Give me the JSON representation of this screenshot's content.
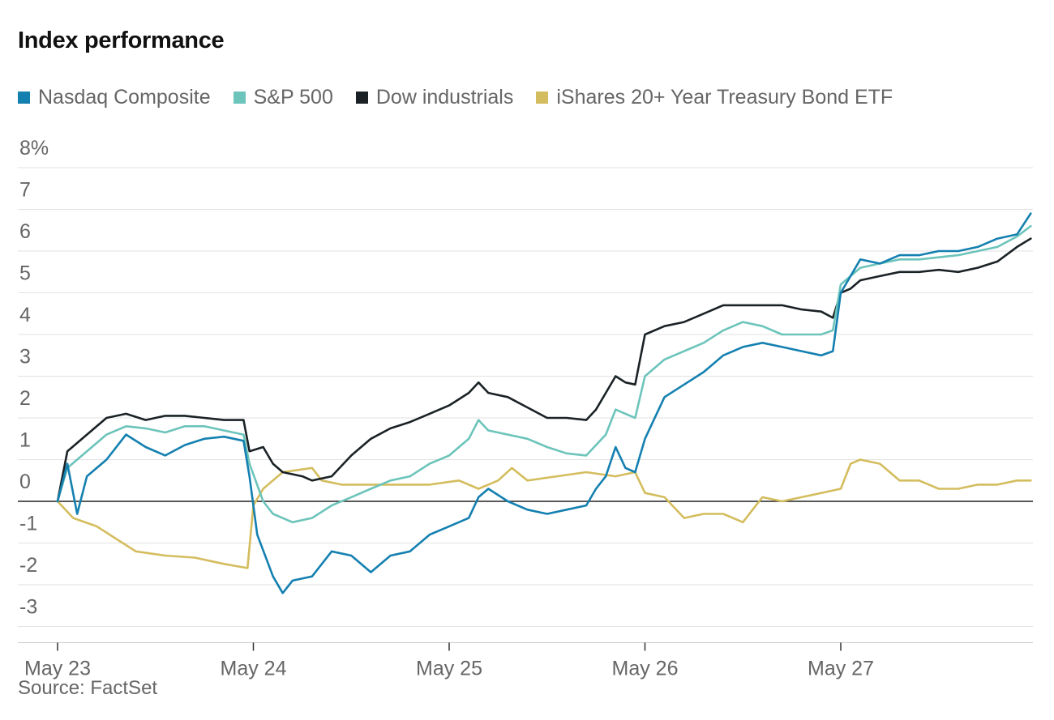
{
  "chart_data": {
    "type": "line",
    "title": "Index performance",
    "source": "Source: FactSet",
    "xlabel": "",
    "ylabel": "",
    "x_tick_labels": [
      "May 23",
      "May 24",
      "May 25",
      "May 26",
      "May 27"
    ],
    "x_range": [
      0,
      4.97
    ],
    "y_tick_labels": [
      "8%",
      "7",
      "6",
      "5",
      "4",
      "3",
      "2",
      "1",
      "0",
      "-1",
      "-2",
      "-3"
    ],
    "y_ticks": [
      8,
      7,
      6,
      5,
      4,
      3,
      2,
      1,
      0,
      -1,
      -2,
      -3
    ],
    "ylim": [
      -3,
      8
    ],
    "grid": true,
    "legend_position": "top",
    "series": [
      {
        "name": "iShares 20+ Year Treasury Bond ETF",
        "color": "#d4bd5e",
        "points": [
          [
            0,
            0
          ],
          [
            0.08,
            -0.4
          ],
          [
            0.2,
            -0.6
          ],
          [
            0.3,
            -0.9
          ],
          [
            0.4,
            -1.2
          ],
          [
            0.55,
            -1.3
          ],
          [
            0.7,
            -1.35
          ],
          [
            0.85,
            -1.5
          ],
          [
            0.97,
            -1.6
          ],
          [
            1.0,
            -0.1
          ],
          [
            1.05,
            0.3
          ],
          [
            1.15,
            0.7
          ],
          [
            1.3,
            0.8
          ],
          [
            1.35,
            0.5
          ],
          [
            1.45,
            0.4
          ],
          [
            1.6,
            0.4
          ],
          [
            1.75,
            0.4
          ],
          [
            1.9,
            0.4
          ],
          [
            2.05,
            0.5
          ],
          [
            2.15,
            0.3
          ],
          [
            2.25,
            0.5
          ],
          [
            2.32,
            0.8
          ],
          [
            2.4,
            0.5
          ],
          [
            2.55,
            0.6
          ],
          [
            2.7,
            0.7
          ],
          [
            2.85,
            0.6
          ],
          [
            2.95,
            0.7
          ],
          [
            3.0,
            0.2
          ],
          [
            3.1,
            0.1
          ],
          [
            3.2,
            -0.4
          ],
          [
            3.3,
            -0.3
          ],
          [
            3.4,
            -0.3
          ],
          [
            3.5,
            -0.5
          ],
          [
            3.55,
            -0.2
          ],
          [
            3.6,
            0.1
          ],
          [
            3.7,
            0.0
          ],
          [
            3.8,
            0.1
          ],
          [
            3.9,
            0.2
          ],
          [
            4.0,
            0.3
          ],
          [
            4.05,
            0.9
          ],
          [
            4.1,
            1.0
          ],
          [
            4.2,
            0.9
          ],
          [
            4.3,
            0.5
          ],
          [
            4.4,
            0.5
          ],
          [
            4.5,
            0.3
          ],
          [
            4.6,
            0.3
          ],
          [
            4.7,
            0.4
          ],
          [
            4.8,
            0.4
          ],
          [
            4.9,
            0.5
          ],
          [
            4.97,
            0.5
          ]
        ]
      },
      {
        "name": "Dow industrials",
        "color": "#1a2226",
        "points": [
          [
            0,
            0
          ],
          [
            0.05,
            1.2
          ],
          [
            0.15,
            1.6
          ],
          [
            0.25,
            2.0
          ],
          [
            0.35,
            2.1
          ],
          [
            0.45,
            1.95
          ],
          [
            0.55,
            2.05
          ],
          [
            0.65,
            2.05
          ],
          [
            0.75,
            2.0
          ],
          [
            0.85,
            1.95
          ],
          [
            0.95,
            1.95
          ],
          [
            0.98,
            1.2
          ],
          [
            1.05,
            1.3
          ],
          [
            1.1,
            0.9
          ],
          [
            1.15,
            0.7
          ],
          [
            1.25,
            0.6
          ],
          [
            1.3,
            0.5
          ],
          [
            1.4,
            0.6
          ],
          [
            1.5,
            1.1
          ],
          [
            1.6,
            1.5
          ],
          [
            1.7,
            1.75
          ],
          [
            1.8,
            1.9
          ],
          [
            1.9,
            2.1
          ],
          [
            2.0,
            2.3
          ],
          [
            2.1,
            2.6
          ],
          [
            2.15,
            2.85
          ],
          [
            2.2,
            2.6
          ],
          [
            2.3,
            2.5
          ],
          [
            2.4,
            2.25
          ],
          [
            2.5,
            2.0
          ],
          [
            2.6,
            2.0
          ],
          [
            2.7,
            1.95
          ],
          [
            2.75,
            2.2
          ],
          [
            2.8,
            2.6
          ],
          [
            2.85,
            3.0
          ],
          [
            2.9,
            2.85
          ],
          [
            2.95,
            2.8
          ],
          [
            3.0,
            4.0
          ],
          [
            3.1,
            4.2
          ],
          [
            3.2,
            4.3
          ],
          [
            3.3,
            4.5
          ],
          [
            3.4,
            4.7
          ],
          [
            3.5,
            4.7
          ],
          [
            3.6,
            4.7
          ],
          [
            3.7,
            4.7
          ],
          [
            3.8,
            4.6
          ],
          [
            3.9,
            4.55
          ],
          [
            3.96,
            4.4
          ],
          [
            4.0,
            5.0
          ],
          [
            4.05,
            5.1
          ],
          [
            4.1,
            5.3
          ],
          [
            4.2,
            5.4
          ],
          [
            4.3,
            5.5
          ],
          [
            4.4,
            5.5
          ],
          [
            4.5,
            5.55
          ],
          [
            4.6,
            5.5
          ],
          [
            4.7,
            5.6
          ],
          [
            4.8,
            5.75
          ],
          [
            4.9,
            6.1
          ],
          [
            4.97,
            6.3
          ]
        ]
      },
      {
        "name": "S&P 500",
        "color": "#6cc4bb",
        "points": [
          [
            0,
            0
          ],
          [
            0.05,
            0.8
          ],
          [
            0.15,
            1.2
          ],
          [
            0.25,
            1.6
          ],
          [
            0.35,
            1.8
          ],
          [
            0.45,
            1.75
          ],
          [
            0.55,
            1.65
          ],
          [
            0.65,
            1.8
          ],
          [
            0.75,
            1.8
          ],
          [
            0.85,
            1.7
          ],
          [
            0.95,
            1.6
          ],
          [
            0.98,
            0.9
          ],
          [
            1.05,
            0.0
          ],
          [
            1.1,
            -0.3
          ],
          [
            1.2,
            -0.5
          ],
          [
            1.3,
            -0.4
          ],
          [
            1.4,
            -0.1
          ],
          [
            1.5,
            0.1
          ],
          [
            1.6,
            0.3
          ],
          [
            1.7,
            0.5
          ],
          [
            1.8,
            0.6
          ],
          [
            1.9,
            0.9
          ],
          [
            2.0,
            1.1
          ],
          [
            2.1,
            1.5
          ],
          [
            2.15,
            1.95
          ],
          [
            2.2,
            1.7
          ],
          [
            2.3,
            1.6
          ],
          [
            2.4,
            1.5
          ],
          [
            2.5,
            1.3
          ],
          [
            2.6,
            1.15
          ],
          [
            2.7,
            1.1
          ],
          [
            2.8,
            1.6
          ],
          [
            2.85,
            2.2
          ],
          [
            2.9,
            2.1
          ],
          [
            2.95,
            2.0
          ],
          [
            3.0,
            3.0
          ],
          [
            3.1,
            3.4
          ],
          [
            3.2,
            3.6
          ],
          [
            3.3,
            3.8
          ],
          [
            3.4,
            4.1
          ],
          [
            3.5,
            4.3
          ],
          [
            3.6,
            4.2
          ],
          [
            3.7,
            4.0
          ],
          [
            3.8,
            4.0
          ],
          [
            3.9,
            4.0
          ],
          [
            3.96,
            4.1
          ],
          [
            4.0,
            5.2
          ],
          [
            4.05,
            5.4
          ],
          [
            4.1,
            5.6
          ],
          [
            4.2,
            5.7
          ],
          [
            4.3,
            5.8
          ],
          [
            4.4,
            5.8
          ],
          [
            4.5,
            5.85
          ],
          [
            4.6,
            5.9
          ],
          [
            4.7,
            6.0
          ],
          [
            4.8,
            6.1
          ],
          [
            4.9,
            6.35
          ],
          [
            4.97,
            6.6
          ]
        ]
      },
      {
        "name": "Nasdaq Composite",
        "color": "#1480b0",
        "points": [
          [
            0,
            0
          ],
          [
            0.05,
            0.9
          ],
          [
            0.1,
            -0.3
          ],
          [
            0.15,
            0.6
          ],
          [
            0.25,
            1.0
          ],
          [
            0.35,
            1.6
          ],
          [
            0.45,
            1.3
          ],
          [
            0.55,
            1.1
          ],
          [
            0.65,
            1.35
          ],
          [
            0.75,
            1.5
          ],
          [
            0.85,
            1.55
          ],
          [
            0.95,
            1.45
          ],
          [
            0.98,
            0.6
          ],
          [
            1.02,
            -0.8
          ],
          [
            1.1,
            -1.8
          ],
          [
            1.15,
            -2.2
          ],
          [
            1.2,
            -1.9
          ],
          [
            1.3,
            -1.8
          ],
          [
            1.4,
            -1.2
          ],
          [
            1.5,
            -1.3
          ],
          [
            1.6,
            -1.7
          ],
          [
            1.7,
            -1.3
          ],
          [
            1.8,
            -1.2
          ],
          [
            1.9,
            -0.8
          ],
          [
            2.0,
            -0.6
          ],
          [
            2.1,
            -0.4
          ],
          [
            2.15,
            0.1
          ],
          [
            2.2,
            0.3
          ],
          [
            2.3,
            0.0
          ],
          [
            2.4,
            -0.2
          ],
          [
            2.5,
            -0.3
          ],
          [
            2.6,
            -0.2
          ],
          [
            2.7,
            -0.1
          ],
          [
            2.75,
            0.3
          ],
          [
            2.8,
            0.6
          ],
          [
            2.85,
            1.3
          ],
          [
            2.9,
            0.8
          ],
          [
            2.95,
            0.7
          ],
          [
            3.0,
            1.5
          ],
          [
            3.1,
            2.5
          ],
          [
            3.2,
            2.8
          ],
          [
            3.3,
            3.1
          ],
          [
            3.4,
            3.5
          ],
          [
            3.5,
            3.7
          ],
          [
            3.6,
            3.8
          ],
          [
            3.7,
            3.7
          ],
          [
            3.8,
            3.6
          ],
          [
            3.9,
            3.5
          ],
          [
            3.96,
            3.6
          ],
          [
            4.0,
            5.0
          ],
          [
            4.05,
            5.4
          ],
          [
            4.1,
            5.8
          ],
          [
            4.2,
            5.7
          ],
          [
            4.3,
            5.9
          ],
          [
            4.4,
            5.9
          ],
          [
            4.5,
            6.0
          ],
          [
            4.6,
            6.0
          ],
          [
            4.7,
            6.1
          ],
          [
            4.8,
            6.3
          ],
          [
            4.9,
            6.4
          ],
          [
            4.97,
            6.9
          ]
        ]
      }
    ]
  }
}
